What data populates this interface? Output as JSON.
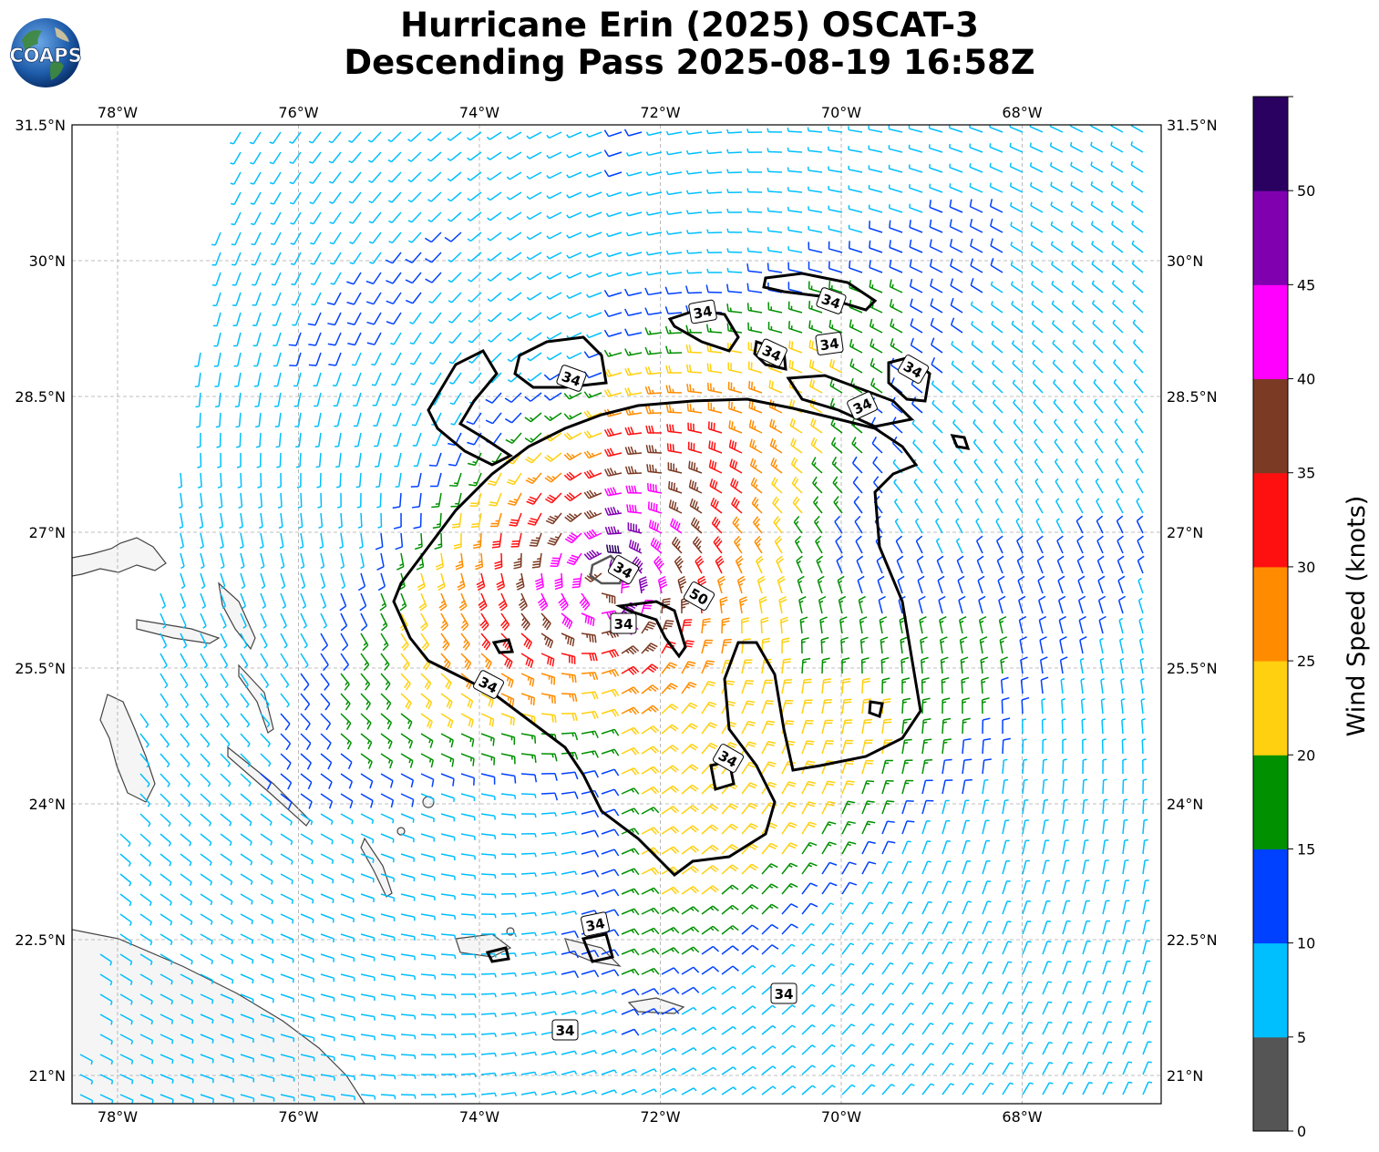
{
  "title": {
    "line1": "Hurricane Erin (2025) OSCAT-3",
    "line2": "Descending Pass 2025-08-19 16:58Z"
  },
  "logo": {
    "text": "COAPS"
  },
  "map": {
    "lon_range": [
      -78.5,
      -66.5
    ],
    "lat_range": [
      20.8,
      31.5
    ],
    "grid": true,
    "lon_labels": [
      "78°W",
      "76°W",
      "74°W",
      "72°W",
      "70°W",
      "68°W"
    ],
    "lat_labels": [
      "31.5°N",
      "30°N",
      "28.5°N",
      "27°N",
      "25.5°N",
      "24°N",
      "22.5°N",
      "21°N"
    ],
    "storm_center": {
      "lon": -72.6,
      "lat": 26.4
    },
    "contour_labels": [
      "34",
      "34",
      "34",
      "34",
      "34",
      "34",
      "34",
      "34",
      "50",
      "34",
      "34",
      "34",
      "34",
      "34",
      "34"
    ]
  },
  "colorbar": {
    "label": "Wind Speed (knots)",
    "tick_labels": [
      "0",
      "5",
      "10",
      "15",
      "20",
      "25",
      "30",
      "35",
      "40",
      "45",
      "50"
    ],
    "bins": [
      {
        "min": 0,
        "max": 5,
        "color": "#555555"
      },
      {
        "min": 5,
        "max": 10,
        "color": "#00bfff"
      },
      {
        "min": 10,
        "max": 15,
        "color": "#0040ff"
      },
      {
        "min": 15,
        "max": 20,
        "color": "#009000"
      },
      {
        "min": 20,
        "max": 25,
        "color": "#ffd010"
      },
      {
        "min": 25,
        "max": 30,
        "color": "#ff8c00"
      },
      {
        "min": 30,
        "max": 35,
        "color": "#ff1010"
      },
      {
        "min": 35,
        "max": 40,
        "color": "#7b3a24"
      },
      {
        "min": 40,
        "max": 45,
        "color": "#ff00ff"
      },
      {
        "min": 45,
        "max": 50,
        "color": "#8000b0"
      },
      {
        "min": 50,
        "max": 55,
        "color": "#2a0060"
      }
    ]
  }
}
